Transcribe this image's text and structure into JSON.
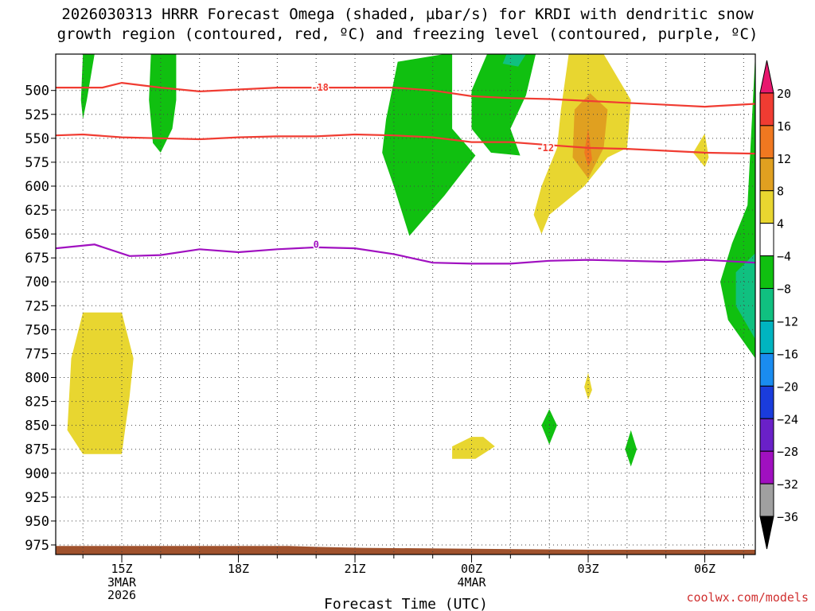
{
  "title_line1": "2026030313 HRRR Forecast Omega (shaded, µbar/s) for KRDI with dendritic snow",
  "title_line2": "growth region (contoured, red, ºC) and freezing level (contoured, purple, ºC)",
  "credit": "coolwx.com/models",
  "chart_data": {
    "type": "time-height cross section",
    "xlabel": "Forecast Time (UTC)",
    "x_range_hours": [
      13.3,
      31.3
    ],
    "x_ticks": [
      {
        "hour": 15,
        "label": "15Z",
        "sub": [
          "3MAR",
          "2026"
        ]
      },
      {
        "hour": 18,
        "label": "18Z",
        "sub": []
      },
      {
        "hour": 21,
        "label": "21Z",
        "sub": []
      },
      {
        "hour": 24,
        "label": "00Z",
        "sub": [
          "4MAR"
        ]
      },
      {
        "hour": 27,
        "label": "03Z",
        "sub": []
      },
      {
        "hour": 30,
        "label": "06Z",
        "sub": []
      }
    ],
    "y_ticks": [
      500,
      525,
      550,
      575,
      600,
      625,
      650,
      675,
      700,
      725,
      750,
      775,
      800,
      825,
      850,
      875,
      900,
      925,
      950,
      975
    ],
    "y_range_hpa": [
      462,
      985
    ],
    "colorbar": {
      "labels": [
        20,
        16,
        12,
        8,
        4,
        -4,
        -8,
        -12,
        -16,
        -20,
        -24,
        -28,
        -32,
        -36
      ],
      "colors": [
        "#e8176e",
        "#f03c32",
        "#f07820",
        "#e0a020",
        "#e8d630",
        "#ffffff",
        "#10c010",
        "#10c080",
        "#00b4c0",
        "#1a8cf0",
        "#1a3cdc",
        "#6a20c8",
        "#a010c0",
        "#a0a0a0",
        "#000000"
      ]
    },
    "isotherms": [
      {
        "label": "-18",
        "color": "#f03c32",
        "points": [
          [
            13.3,
            497
          ],
          [
            14.5,
            497
          ],
          [
            15,
            492
          ],
          [
            16,
            497
          ],
          [
            17,
            501
          ],
          [
            18,
            499
          ],
          [
            19,
            497
          ],
          [
            20,
            497
          ],
          [
            21,
            497
          ],
          [
            22,
            497
          ],
          [
            23,
            500
          ],
          [
            24,
            506
          ],
          [
            25,
            508
          ],
          [
            26,
            509
          ],
          [
            27,
            511
          ],
          [
            28,
            513
          ],
          [
            29,
            515
          ],
          [
            30,
            517
          ],
          [
            31.3,
            514
          ]
        ],
        "label_pos": [
          20.1,
          497
        ]
      },
      {
        "label": "-12",
        "color": "#f03c32",
        "points": [
          [
            13.3,
            547
          ],
          [
            14,
            546
          ],
          [
            15,
            549
          ],
          [
            16,
            550
          ],
          [
            17,
            551
          ],
          [
            18,
            549
          ],
          [
            19,
            548
          ],
          [
            20,
            548
          ],
          [
            21,
            546
          ],
          [
            22,
            547
          ],
          [
            23,
            549
          ],
          [
            24,
            554
          ],
          [
            25,
            554
          ],
          [
            26,
            557
          ],
          [
            27,
            560
          ],
          [
            28,
            561
          ],
          [
            29,
            563
          ],
          [
            30,
            565
          ],
          [
            31.3,
            566
          ]
        ],
        "label_pos": [
          25.9,
          560
        ]
      },
      {
        "label": "0",
        "color": "#a010c0",
        "points": [
          [
            13.3,
            665
          ],
          [
            14.3,
            661
          ],
          [
            15.2,
            673
          ],
          [
            16,
            672
          ],
          [
            17,
            666
          ],
          [
            18,
            669
          ],
          [
            19,
            666
          ],
          [
            20,
            664
          ],
          [
            21,
            665
          ],
          [
            22,
            671
          ],
          [
            23,
            680
          ],
          [
            24,
            681
          ],
          [
            25,
            681
          ],
          [
            26,
            678
          ],
          [
            27,
            677
          ],
          [
            28,
            678
          ],
          [
            29,
            679
          ],
          [
            30,
            677
          ],
          [
            31.3,
            680
          ]
        ],
        "label_pos": [
          20,
          661
        ]
      }
    ],
    "shaded_areas": [
      {
        "level": "green",
        "points": [
          [
            14,
            462
          ],
          [
            14.3,
            462
          ],
          [
            14.1,
            510
          ],
          [
            14.0,
            530
          ],
          [
            13.95,
            510
          ]
        ]
      },
      {
        "level": "green",
        "points": [
          [
            15.75,
            462
          ],
          [
            16.4,
            462
          ],
          [
            16.4,
            510
          ],
          [
            16.3,
            540
          ],
          [
            16.0,
            565
          ],
          [
            15.8,
            555
          ],
          [
            15.7,
            510
          ]
        ]
      },
      {
        "level": "green",
        "points": [
          [
            23.3,
            462
          ],
          [
            23.5,
            462
          ],
          [
            23.5,
            540
          ],
          [
            24.1,
            568
          ],
          [
            23.3,
            610
          ],
          [
            22.4,
            652
          ],
          [
            22,
            600
          ],
          [
            21.7,
            565
          ],
          [
            21.8,
            530
          ],
          [
            22.1,
            470
          ]
        ]
      },
      {
        "level": "green",
        "points": [
          [
            24.4,
            462
          ],
          [
            25.65,
            462
          ],
          [
            25.4,
            505
          ],
          [
            25.0,
            540
          ],
          [
            25.25,
            568
          ],
          [
            24.5,
            565
          ],
          [
            24,
            540
          ],
          [
            24,
            500
          ]
        ]
      },
      {
        "level": "cyan",
        "points": [
          [
            24.9,
            462
          ],
          [
            25.4,
            462
          ],
          [
            25.2,
            475
          ],
          [
            24.8,
            472
          ]
        ]
      },
      {
        "level": "yellow",
        "points": [
          [
            26.5,
            462
          ],
          [
            27.4,
            462
          ],
          [
            28.1,
            510
          ],
          [
            28.0,
            560
          ],
          [
            27.5,
            570
          ],
          [
            26.9,
            600
          ],
          [
            26.0,
            630
          ],
          [
            25.8,
            650
          ],
          [
            25.6,
            630
          ],
          [
            25.8,
            600
          ],
          [
            26.2,
            560
          ],
          [
            26.3,
            520
          ]
        ]
      },
      {
        "level": "orange",
        "points": [
          [
            27.05,
            503
          ],
          [
            27.5,
            520
          ],
          [
            27.4,
            560
          ],
          [
            27.0,
            592
          ],
          [
            26.6,
            570
          ],
          [
            26.65,
            520
          ]
        ]
      },
      {
        "level": "red",
        "points": [
          [
            27.0,
            540
          ],
          [
            27.1,
            572
          ],
          [
            27.0,
            580
          ],
          [
            26.9,
            565
          ]
        ]
      },
      {
        "level": "yellow",
        "points": [
          [
            30.0,
            545
          ],
          [
            30.1,
            570
          ],
          [
            30.0,
            580
          ],
          [
            29.7,
            565
          ]
        ]
      },
      {
        "level": "green",
        "points": [
          [
            31.3,
            462
          ],
          [
            31.3,
            780
          ],
          [
            30.6,
            740
          ],
          [
            30.4,
            700
          ],
          [
            30.7,
            660
          ],
          [
            31.1,
            620
          ]
        ]
      },
      {
        "level": "cyan",
        "points": [
          [
            31.3,
            670
          ],
          [
            31.3,
            760
          ],
          [
            30.8,
            725
          ],
          [
            30.8,
            690
          ]
        ]
      },
      {
        "level": "yellow",
        "points": [
          [
            14.0,
            732
          ],
          [
            15.0,
            732
          ],
          [
            15.3,
            780
          ],
          [
            15.2,
            820
          ],
          [
            15.0,
            880
          ],
          [
            14.0,
            880
          ],
          [
            13.6,
            855
          ],
          [
            13.7,
            780
          ]
        ]
      },
      {
        "level": "yellow",
        "points": [
          [
            24.0,
            862
          ],
          [
            24.3,
            862
          ],
          [
            24.6,
            872
          ],
          [
            24.1,
            885
          ],
          [
            23.5,
            885
          ],
          [
            23.5,
            872
          ]
        ]
      },
      {
        "level": "yellow",
        "points": [
          [
            27.0,
            795
          ],
          [
            27.1,
            813
          ],
          [
            27.0,
            823
          ],
          [
            26.9,
            810
          ]
        ]
      },
      {
        "level": "green",
        "points": [
          [
            26.0,
            833
          ],
          [
            26.2,
            850
          ],
          [
            26.0,
            870
          ],
          [
            25.8,
            850
          ]
        ]
      },
      {
        "level": "green",
        "points": [
          [
            28.1,
            855
          ],
          [
            28.25,
            875
          ],
          [
            28.1,
            893
          ],
          [
            27.95,
            875
          ]
        ]
      }
    ],
    "terrain": {
      "points": [
        [
          13.3,
          976
        ],
        [
          19.3,
          976
        ],
        [
          20,
          977
        ],
        [
          21.2,
          978
        ],
        [
          24,
          979
        ],
        [
          27,
          980
        ],
        [
          31.3,
          980
        ]
      ]
    }
  }
}
